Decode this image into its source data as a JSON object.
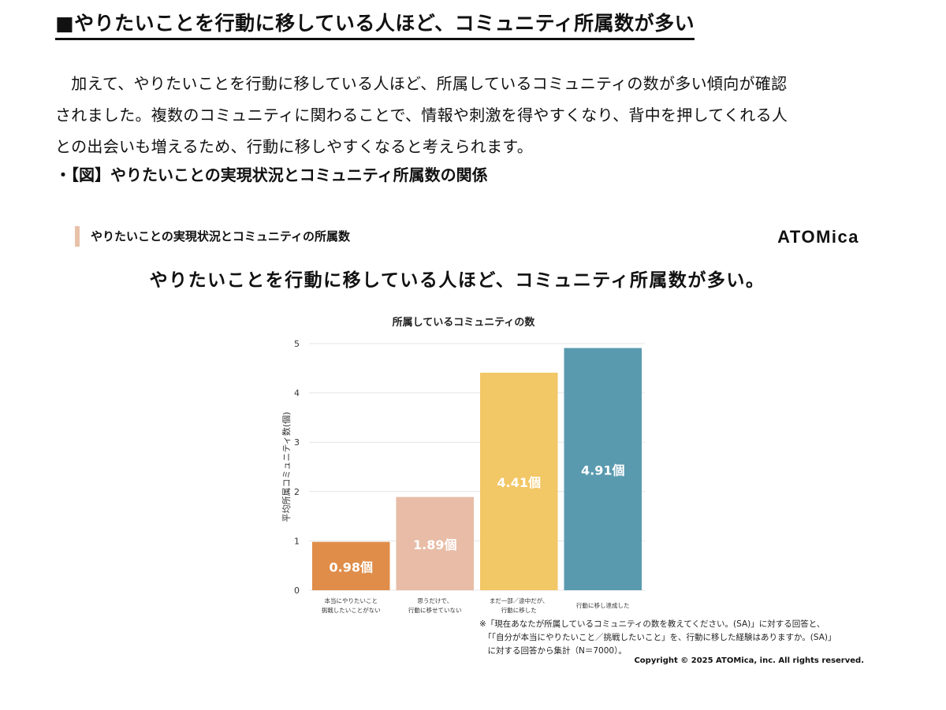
{
  "heading": "■やりたいことを行動に移している人ほど、コミュニティ所属数が多い",
  "paragraph_lines": [
    "　加えて、やりたいことを行動に移している人ほど、所属しているコミュニティの数が多い傾向が確認",
    "されました。複数のコミュニティに関わることで、情報や刺激を得やすくなり、背中を押してくれる人",
    "との出会いも増えるため、行動に移しやすくなると考えられます。"
  ],
  "figure_caption": "・【図】やりたいことの実現状況とコミュニティ所属数の関係",
  "figure_label": "やりたいことの実現状況とコミュニティの所属数",
  "logo_text": "ATOMica",
  "figure_title": "やりたいことを行動に移している人ほど、コミュニティ所属数が多い。",
  "chart_data": {
    "type": "bar",
    "title": "所属しているコミュニティの数",
    "ylabel": "平均所属コミュニティ数(個)",
    "xlabel": "",
    "ylim": [
      0,
      5
    ],
    "yticks": [
      0,
      1,
      2,
      3,
      4,
      5
    ],
    "grid": true,
    "categories": [
      [
        "本当にやりたいこと",
        "挑戦したいことがない"
      ],
      [
        "思うだけで、",
        "行動に移せていない"
      ],
      [
        "まだ一部／途中だが、",
        "行動に移した"
      ],
      [
        "行動に移し達成した"
      ]
    ],
    "values": [
      0.98,
      1.89,
      4.41,
      4.91
    ],
    "value_labels": [
      "0.98個",
      "1.89個",
      "4.41個",
      "4.91個"
    ],
    "colors": [
      "#df8d49",
      "#e8bca6",
      "#f2c766",
      "#5a9aaf"
    ]
  },
  "footnote_lines": [
    "※「現在あなたが所属しているコミュニティの数を教えてください。(SA)」に対する回答と、",
    "　「「自分が本当にやりたいこと／挑戦したいこと」を、行動に移した経験はありますか。(SA)」",
    "　に対する回答から集計（N＝7000）。"
  ],
  "copyright": "Copyright © 2025 ATOMica, inc. All rights reserved."
}
